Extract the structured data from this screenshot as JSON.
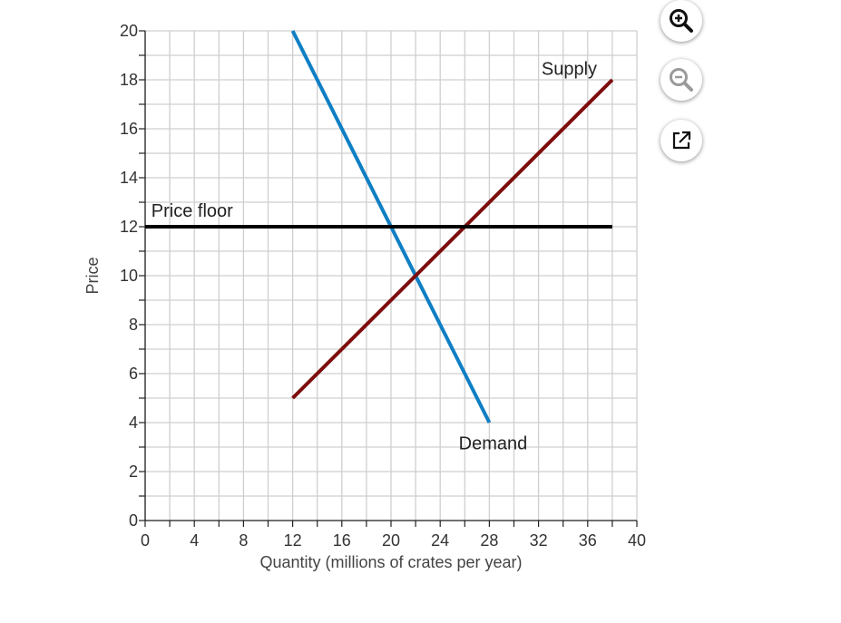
{
  "chart_data": {
    "type": "line",
    "xlabel": "Quantity (millions of crates per year)",
    "ylabel": "Price",
    "xlim": [
      0,
      40
    ],
    "ylim": [
      0,
      20
    ],
    "x_ticks": [
      0,
      4,
      8,
      12,
      16,
      20,
      24,
      28,
      32,
      36,
      40
    ],
    "y_ticks": [
      0,
      2,
      4,
      6,
      8,
      10,
      12,
      14,
      16,
      18,
      20
    ],
    "x_grid_step": 2,
    "y_grid_step": 1,
    "grid": true,
    "series": [
      {
        "name": "Demand",
        "color": "#0f7fc4",
        "points": [
          [
            12,
            20
          ],
          [
            28,
            4
          ]
        ]
      },
      {
        "name": "Supply",
        "color": "#7d0c0c",
        "points": [
          [
            12,
            5
          ],
          [
            38,
            18
          ]
        ]
      },
      {
        "name": "Price floor",
        "color": "#000000",
        "points": [
          [
            0,
            12
          ],
          [
            38,
            12
          ]
        ]
      }
    ],
    "annotations": [
      {
        "text": "Supply",
        "series": "Supply"
      },
      {
        "text": "Demand",
        "series": "Demand"
      },
      {
        "text": "Price floor",
        "series": "Price floor"
      }
    ]
  },
  "toolbar": {
    "zoom_in_icon": "zoom-in-icon",
    "zoom_out_icon": "zoom-out-icon",
    "popout_icon": "external-link-icon"
  }
}
